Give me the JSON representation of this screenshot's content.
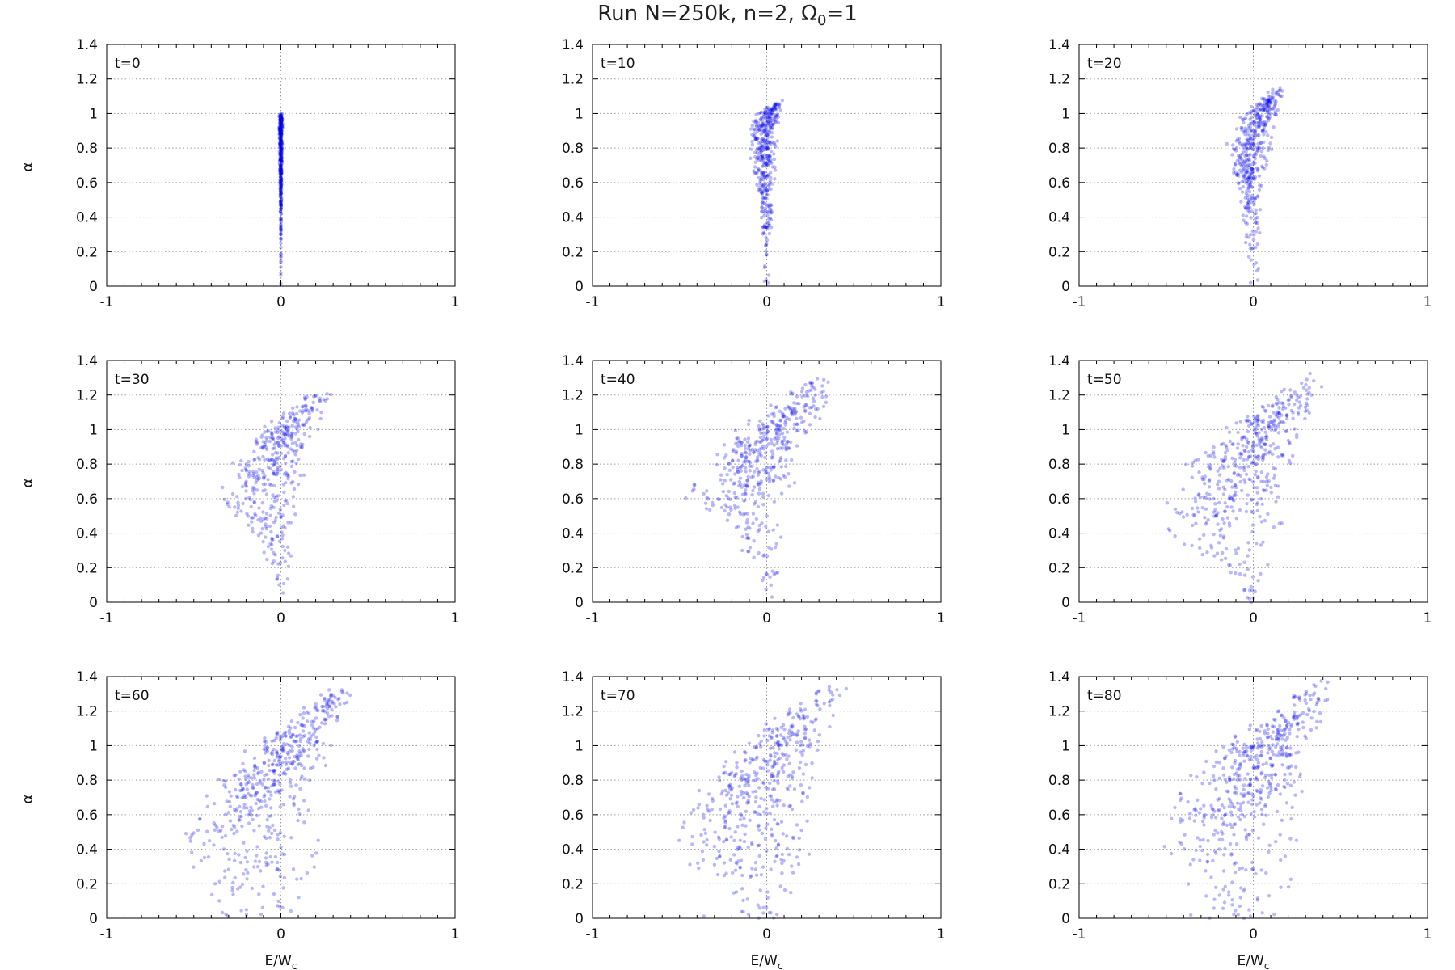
{
  "figure": {
    "title": "Run N=250k, n=2, Ω",
    "title_sub": "0",
    "title_tail": "=1",
    "ylabel": "α",
    "xlabel_main": "E/W",
    "xlabel_sub": "c"
  },
  "colors": {
    "points": "#0000ee",
    "grid": "#9a9a9a",
    "axis": "#000000",
    "text": "#111111"
  },
  "chart_data": [
    {
      "type": "scatter",
      "panel_label": "t=0",
      "t": 0,
      "xlim": [
        -1,
        1
      ],
      "ylim": [
        0,
        1.4
      ],
      "xticks": [
        -1,
        0,
        1
      ],
      "yticks": [
        0,
        0.2,
        0.4,
        0.6,
        0.8,
        1,
        1.2,
        1.4
      ],
      "grid": true,
      "density": [
        {
          "a": 1.0,
          "x_min": -0.01,
          "x_max": 0.01,
          "weight": 1
        },
        {
          "a": 0.2,
          "x_min": 0.0,
          "x_max": 0.0,
          "weight": 0.05
        }
      ]
    },
    {
      "type": "scatter",
      "panel_label": "t=10",
      "t": 10,
      "xlim": [
        -1,
        1
      ],
      "ylim": [
        0,
        1.4
      ],
      "xticks": [
        -1,
        0,
        1
      ],
      "yticks": [
        0,
        0.2,
        0.4,
        0.6,
        0.8,
        1,
        1.2,
        1.4
      ],
      "grid": true,
      "density": [
        {
          "a": 1.08,
          "x_min": 0.05,
          "x_max": 0.1,
          "weight": 0.1
        },
        {
          "a": 1.0,
          "x_min": -0.06,
          "x_max": 0.08,
          "weight": 1
        },
        {
          "a": 0.8,
          "x_min": -0.1,
          "x_max": 0.05,
          "weight": 0.9
        },
        {
          "a": 0.6,
          "x_min": -0.06,
          "x_max": 0.04,
          "weight": 0.5
        },
        {
          "a": 0.4,
          "x_min": -0.04,
          "x_max": 0.03,
          "weight": 0.2
        },
        {
          "a": 0.15,
          "x_min": -0.02,
          "x_max": 0.02,
          "weight": 0.05
        }
      ]
    },
    {
      "type": "scatter",
      "panel_label": "t=20",
      "t": 20,
      "xlim": [
        -1,
        1
      ],
      "ylim": [
        0,
        1.4
      ],
      "xticks": [
        -1,
        0,
        1
      ],
      "yticks": [
        0,
        0.2,
        0.4,
        0.6,
        0.8,
        1,
        1.2,
        1.4
      ],
      "grid": true,
      "density": [
        {
          "a": 1.15,
          "x_min": 0.1,
          "x_max": 0.18,
          "weight": 0.1
        },
        {
          "a": 1.0,
          "x_min": -0.05,
          "x_max": 0.14,
          "weight": 1
        },
        {
          "a": 0.8,
          "x_min": -0.15,
          "x_max": 0.1,
          "weight": 0.9
        },
        {
          "a": 0.6,
          "x_min": -0.1,
          "x_max": 0.06,
          "weight": 0.5
        },
        {
          "a": 0.4,
          "x_min": -0.06,
          "x_max": 0.04,
          "weight": 0.25
        },
        {
          "a": 0.1,
          "x_min": -0.03,
          "x_max": 0.03,
          "weight": 0.05
        }
      ]
    },
    {
      "type": "scatter",
      "panel_label": "t=30",
      "t": 30,
      "xlim": [
        -1,
        1
      ],
      "ylim": [
        0,
        1.4
      ],
      "xticks": [
        -1,
        0,
        1
      ],
      "yticks": [
        0,
        0.2,
        0.4,
        0.6,
        0.8,
        1,
        1.2,
        1.4
      ],
      "grid": true,
      "density": [
        {
          "a": 1.22,
          "x_min": 0.15,
          "x_max": 0.28,
          "weight": 0.1
        },
        {
          "a": 1.0,
          "x_min": -0.1,
          "x_max": 0.2,
          "weight": 1
        },
        {
          "a": 0.8,
          "x_min": -0.25,
          "x_max": 0.12,
          "weight": 0.9
        },
        {
          "a": 0.6,
          "x_min": -0.35,
          "x_max": 0.08,
          "weight": 0.5
        },
        {
          "a": 0.4,
          "x_min": -0.15,
          "x_max": 0.06,
          "weight": 0.25
        },
        {
          "a": 0.05,
          "x_min": -0.04,
          "x_max": 0.04,
          "weight": 0.05
        }
      ]
    },
    {
      "type": "scatter",
      "panel_label": "t=40",
      "t": 40,
      "xlim": [
        -1,
        1
      ],
      "ylim": [
        0,
        1.4
      ],
      "xticks": [
        -1,
        0,
        1
      ],
      "yticks": [
        0,
        0.2,
        0.4,
        0.6,
        0.8,
        1,
        1.2,
        1.4
      ],
      "grid": true,
      "density": [
        {
          "a": 1.3,
          "x_min": 0.25,
          "x_max": 0.4,
          "weight": 0.1
        },
        {
          "a": 1.0,
          "x_min": -0.15,
          "x_max": 0.25,
          "weight": 1
        },
        {
          "a": 0.8,
          "x_min": -0.3,
          "x_max": 0.15,
          "weight": 0.9
        },
        {
          "a": 0.6,
          "x_min": -0.45,
          "x_max": 0.1,
          "weight": 0.5
        },
        {
          "a": 0.4,
          "x_min": -0.2,
          "x_max": 0.08,
          "weight": 0.3
        },
        {
          "a": 0.1,
          "x_min": -0.05,
          "x_max": 0.05,
          "weight": 0.05
        }
      ]
    },
    {
      "type": "scatter",
      "panel_label": "t=50",
      "t": 50,
      "xlim": [
        -1,
        1
      ],
      "ylim": [
        0,
        1.4
      ],
      "xticks": [
        -1,
        0,
        1
      ],
      "yticks": [
        0,
        0.2,
        0.4,
        0.6,
        0.8,
        1,
        1.2,
        1.4
      ],
      "grid": true,
      "density": [
        {
          "a": 1.33,
          "x_min": 0.3,
          "x_max": 0.45,
          "weight": 0.1
        },
        {
          "a": 1.0,
          "x_min": -0.15,
          "x_max": 0.25,
          "weight": 1
        },
        {
          "a": 0.8,
          "x_min": -0.35,
          "x_max": 0.2,
          "weight": 0.9
        },
        {
          "a": 0.6,
          "x_min": -0.45,
          "x_max": 0.15,
          "weight": 0.55
        },
        {
          "a": 0.4,
          "x_min": -0.6,
          "x_max": 0.1,
          "weight": 0.35
        },
        {
          "a": 0.1,
          "x_min": -0.1,
          "x_max": 0.05,
          "weight": 0.1
        }
      ]
    },
    {
      "type": "scatter",
      "panel_label": "t=60",
      "t": 60,
      "xlim": [
        -1,
        1
      ],
      "ylim": [
        0,
        1.4
      ],
      "xticks": [
        -1,
        0,
        1
      ],
      "yticks": [
        0,
        0.2,
        0.4,
        0.6,
        0.8,
        1,
        1.2,
        1.4
      ],
      "grid": true,
      "density": [
        {
          "a": 1.35,
          "x_min": 0.3,
          "x_max": 0.45,
          "weight": 0.1
        },
        {
          "a": 1.0,
          "x_min": -0.15,
          "x_max": 0.25,
          "weight": 1
        },
        {
          "a": 0.8,
          "x_min": -0.35,
          "x_max": 0.2,
          "weight": 0.9
        },
        {
          "a": 0.6,
          "x_min": -0.5,
          "x_max": 0.15,
          "weight": 0.6
        },
        {
          "a": 0.4,
          "x_min": -0.55,
          "x_max": 0.2,
          "weight": 0.45
        },
        {
          "a": 0.1,
          "x_min": -0.45,
          "x_max": 0.1,
          "weight": 0.2
        }
      ]
    },
    {
      "type": "scatter",
      "panel_label": "t=70",
      "t": 70,
      "xlim": [
        -1,
        1
      ],
      "ylim": [
        0,
        1.4
      ],
      "xticks": [
        -1,
        0,
        1
      ],
      "yticks": [
        0,
        0.2,
        0.4,
        0.6,
        0.8,
        1,
        1.2,
        1.4
      ],
      "grid": true,
      "density": [
        {
          "a": 1.35,
          "x_min": 0.3,
          "x_max": 0.45,
          "weight": 0.1
        },
        {
          "a": 1.0,
          "x_min": -0.15,
          "x_max": 0.3,
          "weight": 1
        },
        {
          "a": 0.8,
          "x_min": -0.35,
          "x_max": 0.25,
          "weight": 0.9
        },
        {
          "a": 0.6,
          "x_min": -0.45,
          "x_max": 0.2,
          "weight": 0.6
        },
        {
          "a": 0.4,
          "x_min": -0.5,
          "x_max": 0.25,
          "weight": 0.45
        },
        {
          "a": 0.1,
          "x_min": -0.4,
          "x_max": 0.15,
          "weight": 0.2
        }
      ]
    },
    {
      "type": "scatter",
      "panel_label": "t=80",
      "t": 80,
      "xlim": [
        -1,
        1
      ],
      "ylim": [
        0,
        1.4
      ],
      "xticks": [
        -1,
        0,
        1
      ],
      "yticks": [
        0,
        0.2,
        0.4,
        0.6,
        0.8,
        1,
        1.2,
        1.4
      ],
      "grid": true,
      "density": [
        {
          "a": 1.38,
          "x_min": 0.35,
          "x_max": 0.5,
          "weight": 0.1
        },
        {
          "a": 1.0,
          "x_min": -0.15,
          "x_max": 0.3,
          "weight": 1
        },
        {
          "a": 0.8,
          "x_min": -0.35,
          "x_max": 0.25,
          "weight": 0.9
        },
        {
          "a": 0.6,
          "x_min": -0.45,
          "x_max": 0.2,
          "weight": 0.6
        },
        {
          "a": 0.4,
          "x_min": -0.55,
          "x_max": 0.25,
          "weight": 0.45
        },
        {
          "a": 0.1,
          "x_min": -0.35,
          "x_max": 0.15,
          "weight": 0.2
        }
      ]
    }
  ]
}
